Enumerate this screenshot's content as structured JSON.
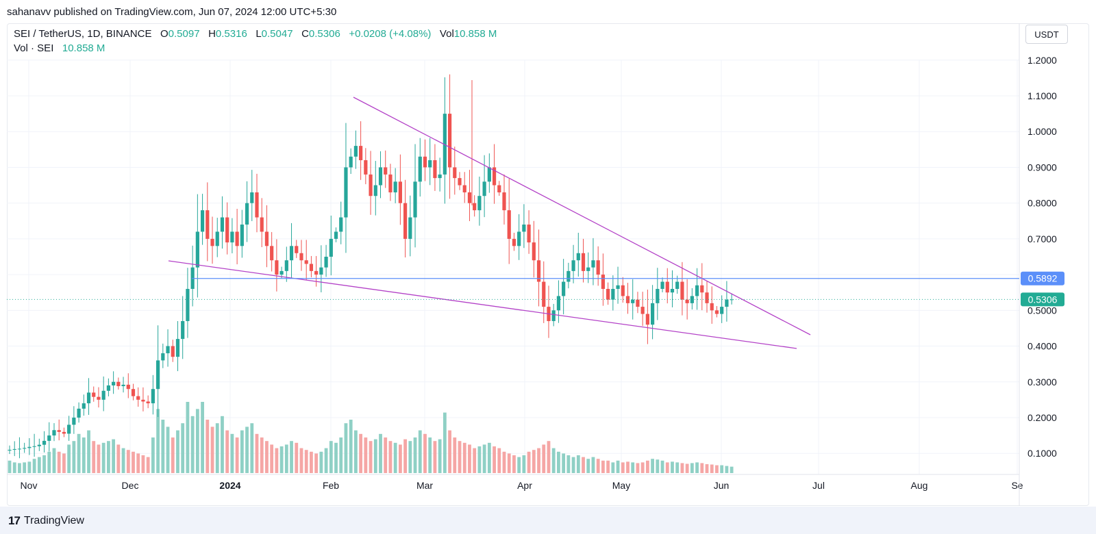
{
  "header": {
    "publisher": "sahanavv published on TradingView.com, Jun 07, 2024 12:00 UTC+5:30"
  },
  "legend": {
    "symbol": "SEI / TetherUS, 1D, BINANCE",
    "o_label": "O",
    "o_value": "0.5097",
    "h_label": "H",
    "h_value": "0.5316",
    "l_label": "L",
    "l_value": "0.5047",
    "c_label": "C",
    "c_value": "0.5306",
    "change": "+0.0208 (+4.08%)",
    "vol_label": "Vol",
    "vol_value": "10.858 M",
    "vol_series": "Vol · SEI",
    "vol_series_value": "10.858 M"
  },
  "currency_button": "USDT",
  "footer": {
    "brand_logo": "17",
    "brand_name": "TradingView"
  },
  "colors": {
    "up": "#26a69a",
    "down": "#ef5350",
    "vol_up": "#8fd0c5",
    "vol_down": "#f5a6a5",
    "trendline": "#b341c7",
    "horizontal": "#5b8ff9",
    "grid": "#f0f3fa",
    "last_price": "#22ab94"
  },
  "chart_data": {
    "type": "candlestick",
    "y_ticks": [
      "1.2000",
      "1.1000",
      "1.0000",
      "0.9000",
      "0.8000",
      "0.7000",
      "0.5000",
      "0.4000",
      "0.3000",
      "0.2000",
      "0.1000"
    ],
    "ylim": [
      0.0,
      1.26
    ],
    "x_ticks": [
      "Nov",
      "Dec",
      "2024",
      "Feb",
      "Mar",
      "Apr",
      "May",
      "Jun",
      "Jul",
      "Aug",
      "Se"
    ],
    "price_labels": [
      {
        "value": 0.5892,
        "text": "0.5892",
        "kind": "horizontal-line"
      },
      {
        "value": 0.5306,
        "text": "0.5306",
        "kind": "last-price"
      }
    ],
    "closes": [
      0.11,
      0.112,
      0.113,
      0.115,
      0.118,
      0.12,
      0.124,
      0.135,
      0.15,
      0.165,
      0.16,
      0.155,
      0.18,
      0.2,
      0.225,
      0.24,
      0.27,
      0.258,
      0.25,
      0.275,
      0.29,
      0.3,
      0.288,
      0.292,
      0.28,
      0.26,
      0.25,
      0.245,
      0.24,
      0.28,
      0.36,
      0.38,
      0.4,
      0.37,
      0.42,
      0.47,
      0.56,
      0.62,
      0.72,
      0.78,
      0.7,
      0.68,
      0.72,
      0.76,
      0.69,
      0.72,
      0.68,
      0.74,
      0.8,
      0.83,
      0.76,
      0.72,
      0.68,
      0.64,
      0.6,
      0.61,
      0.64,
      0.68,
      0.66,
      0.64,
      0.63,
      0.61,
      0.6,
      0.62,
      0.65,
      0.7,
      0.72,
      0.76,
      0.9,
      0.93,
      0.96,
      0.92,
      0.88,
      0.82,
      0.85,
      0.9,
      0.88,
      0.83,
      0.86,
      0.8,
      0.7,
      0.76,
      0.86,
      0.93,
      0.9,
      0.92,
      0.87,
      0.88,
      1.05,
      0.9,
      0.87,
      0.85,
      0.83,
      0.8,
      0.78,
      0.82,
      0.86,
      0.9,
      0.85,
      0.83,
      0.78,
      0.7,
      0.68,
      0.72,
      0.74,
      0.69,
      0.64,
      0.58,
      0.51,
      0.47,
      0.5,
      0.54,
      0.58,
      0.61,
      0.64,
      0.66,
      0.61,
      0.62,
      0.64,
      0.6,
      0.56,
      0.53,
      0.56,
      0.57,
      0.54,
      0.52,
      0.53,
      0.51,
      0.49,
      0.46,
      0.52,
      0.56,
      0.58,
      0.55,
      0.56,
      0.58,
      0.53,
      0.52,
      0.54,
      0.57,
      0.55,
      0.52,
      0.5,
      0.49,
      0.51,
      0.53,
      0.5306
    ],
    "volumes": [
      0.035,
      0.03,
      0.028,
      0.03,
      0.032,
      0.04,
      0.045,
      0.05,
      0.06,
      0.07,
      0.06,
      0.055,
      0.08,
      0.09,
      0.11,
      0.1,
      0.12,
      0.09,
      0.08,
      0.085,
      0.09,
      0.095,
      0.08,
      0.07,
      0.065,
      0.06,
      0.055,
      0.05,
      0.045,
      0.1,
      0.18,
      0.15,
      0.13,
      0.1,
      0.12,
      0.14,
      0.2,
      0.16,
      0.18,
      0.2,
      0.15,
      0.13,
      0.14,
      0.16,
      0.12,
      0.11,
      0.1,
      0.12,
      0.13,
      0.14,
      0.11,
      0.1,
      0.09,
      0.08,
      0.07,
      0.075,
      0.08,
      0.09,
      0.085,
      0.07,
      0.065,
      0.06,
      0.055,
      0.06,
      0.07,
      0.09,
      0.085,
      0.1,
      0.14,
      0.15,
      0.12,
      0.11,
      0.1,
      0.09,
      0.095,
      0.11,
      0.1,
      0.09,
      0.085,
      0.08,
      0.095,
      0.09,
      0.1,
      0.12,
      0.11,
      0.1,
      0.09,
      0.095,
      0.17,
      0.12,
      0.1,
      0.09,
      0.085,
      0.08,
      0.07,
      0.075,
      0.08,
      0.085,
      0.075,
      0.07,
      0.06,
      0.055,
      0.05,
      0.045,
      0.05,
      0.06,
      0.065,
      0.07,
      0.08,
      0.09,
      0.07,
      0.06,
      0.055,
      0.05,
      0.045,
      0.05,
      0.045,
      0.04,
      0.045,
      0.04,
      0.035,
      0.035,
      0.03,
      0.035,
      0.03,
      0.032,
      0.03,
      0.028,
      0.03,
      0.035,
      0.04,
      0.038,
      0.035,
      0.03,
      0.032,
      0.03,
      0.028,
      0.026,
      0.028,
      0.03,
      0.028,
      0.025,
      0.024,
      0.022,
      0.022,
      0.02,
      0.018
    ],
    "annotations": [
      {
        "type": "trendline",
        "from": [
          "Feb 06",
          1.095
        ],
        "to": [
          "Jun 23",
          0.43
        ]
      },
      {
        "type": "trendline",
        "from": [
          "Dec 20",
          0.64
        ],
        "to": [
          "Jun 21",
          0.39
        ]
      },
      {
        "type": "horizontal",
        "value": 0.5892
      }
    ]
  }
}
